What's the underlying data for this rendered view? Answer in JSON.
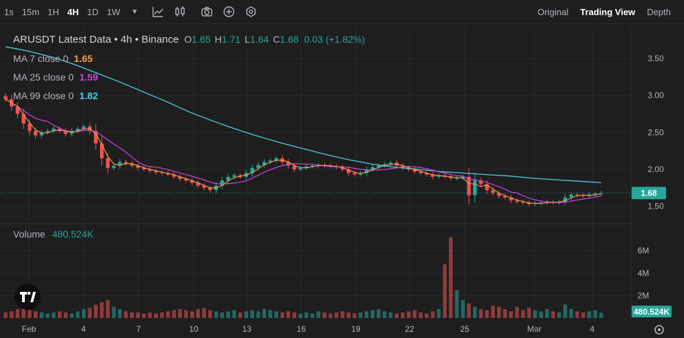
{
  "toolbar": {
    "timeframes": [
      {
        "label": "1s",
        "active": false
      },
      {
        "label": "15m",
        "active": false
      },
      {
        "label": "1H",
        "active": false
      },
      {
        "label": "4H",
        "active": true
      },
      {
        "label": "1D",
        "active": false
      },
      {
        "label": "1W",
        "active": false
      }
    ],
    "icons": [
      "chevron-down-icon",
      "indicators-icon",
      "candle-type-icon",
      "camera-icon",
      "add-icon",
      "settings-icon"
    ],
    "views": [
      {
        "label": "Original",
        "active": false
      },
      {
        "label": "Trading View",
        "active": true
      },
      {
        "label": "Depth",
        "active": false
      }
    ]
  },
  "legend": {
    "title": "ARUSDT Latest Data • 4h • Binance",
    "ohlc": [
      {
        "key": "O",
        "value": "1.65"
      },
      {
        "key": "H",
        "value": "1.71"
      },
      {
        "key": "L",
        "value": "1.64"
      },
      {
        "key": "C",
        "value": "1.68"
      }
    ],
    "change": "0.03 (+1.82%)",
    "ma": [
      {
        "label": "MA 7 close 0",
        "value": "1.65",
        "color": "#f6a14a"
      },
      {
        "label": "MA 25 close 0",
        "value": "1.59",
        "color": "#d042e6"
      },
      {
        "label": "MA 99 close 0",
        "value": "1.82",
        "color": "#4dd0e1"
      }
    ],
    "volume_label": "Volume",
    "volume_value": "480.524K"
  },
  "colors": {
    "up": "#26a69a",
    "down": "#ef5350",
    "ma7": "#f6a14a",
    "ma25": "#d042e6",
    "ma99": "#4dd0e1"
  },
  "chart_data": {
    "type": "candlestick",
    "price_axis": {
      "ticks": [
        "3.50",
        "3.00",
        "2.50",
        "2.00",
        "1.50"
      ],
      "range": [
        1.33,
        3.9
      ]
    },
    "volume_axis": {
      "ticks": [
        "6M",
        "4M",
        "2M"
      ],
      "range": [
        0,
        8.1
      ]
    },
    "x_ticks": [
      "Feb",
      "4",
      "7",
      "10",
      "13",
      "16",
      "19",
      "22",
      "25",
      "Mar",
      "4"
    ],
    "last_price": "1.68",
    "last_volume": "480.524K",
    "price_series": [
      2.95,
      2.85,
      2.75,
      2.62,
      2.52,
      2.46,
      2.5,
      2.52,
      2.55,
      2.52,
      2.48,
      2.52,
      2.55,
      2.58,
      2.52,
      2.35,
      2.15,
      2.02,
      2.05,
      2.1,
      2.08,
      2.05,
      2.02,
      2.0,
      1.98,
      1.96,
      1.95,
      1.93,
      1.9,
      1.87,
      1.85,
      1.82,
      1.78,
      1.75,
      1.72,
      1.78,
      1.85,
      1.9,
      1.92,
      1.9,
      1.95,
      2.02,
      2.06,
      2.1,
      2.12,
      2.15,
      2.1,
      2.05,
      2.0,
      2.02,
      2.04,
      2.05,
      2.06,
      2.05,
      2.04,
      2.03,
      2.0,
      1.95,
      1.93,
      1.95,
      2.0,
      2.03,
      2.05,
      2.07,
      2.09,
      2.05,
      2.02,
      2.0,
      1.97,
      1.95,
      1.93,
      1.9,
      1.92,
      1.9,
      1.88,
      1.88,
      1.9,
      1.65,
      1.85,
      1.8,
      1.72,
      1.68,
      1.64,
      1.62,
      1.58,
      1.56,
      1.55,
      1.53,
      1.54,
      1.55,
      1.56,
      1.55,
      1.56,
      1.62,
      1.66,
      1.65,
      1.64,
      1.66,
      1.67,
      1.68
    ],
    "volume_series": [
      0.5,
      0.6,
      0.8,
      0.9,
      0.7,
      0.6,
      0.5,
      0.4,
      0.5,
      0.6,
      0.5,
      0.4,
      0.6,
      0.8,
      0.9,
      1.2,
      1.4,
      1.6,
      1.0,
      0.8,
      0.6,
      0.5,
      0.5,
      0.4,
      0.5,
      0.4,
      0.5,
      0.6,
      0.7,
      0.8,
      0.7,
      0.6,
      0.8,
      0.9,
      0.7,
      0.6,
      0.5,
      0.6,
      0.7,
      0.5,
      0.6,
      0.7,
      0.6,
      0.8,
      0.7,
      0.6,
      0.5,
      0.6,
      0.5,
      0.4,
      0.5,
      0.4,
      0.6,
      0.5,
      0.4,
      0.5,
      0.6,
      0.5,
      0.4,
      0.5,
      0.6,
      0.7,
      0.8,
      0.6,
      0.5,
      0.4,
      0.5,
      0.6,
      0.7,
      0.5,
      0.4,
      0.6,
      0.8,
      4.8,
      7.2,
      2.5,
      1.6,
      1.3,
      1.0,
      0.8,
      0.7,
      1.1,
      1.0,
      0.8,
      0.6,
      1.0,
      0.7,
      0.9,
      0.7,
      0.6,
      0.8,
      0.6,
      0.5,
      1.2,
      0.8,
      0.6,
      0.5,
      0.6,
      0.7,
      0.48
    ],
    "ma99_series": [
      3.66,
      3.6,
      3.52,
      3.42,
      3.3,
      3.18,
      3.05,
      2.92,
      2.78,
      2.66,
      2.55,
      2.45,
      2.36,
      2.28,
      2.2,
      2.13,
      2.07,
      2.03,
      2.0,
      1.97,
      1.95,
      1.93,
      1.91,
      1.88,
      1.86,
      1.84,
      1.82
    ]
  }
}
